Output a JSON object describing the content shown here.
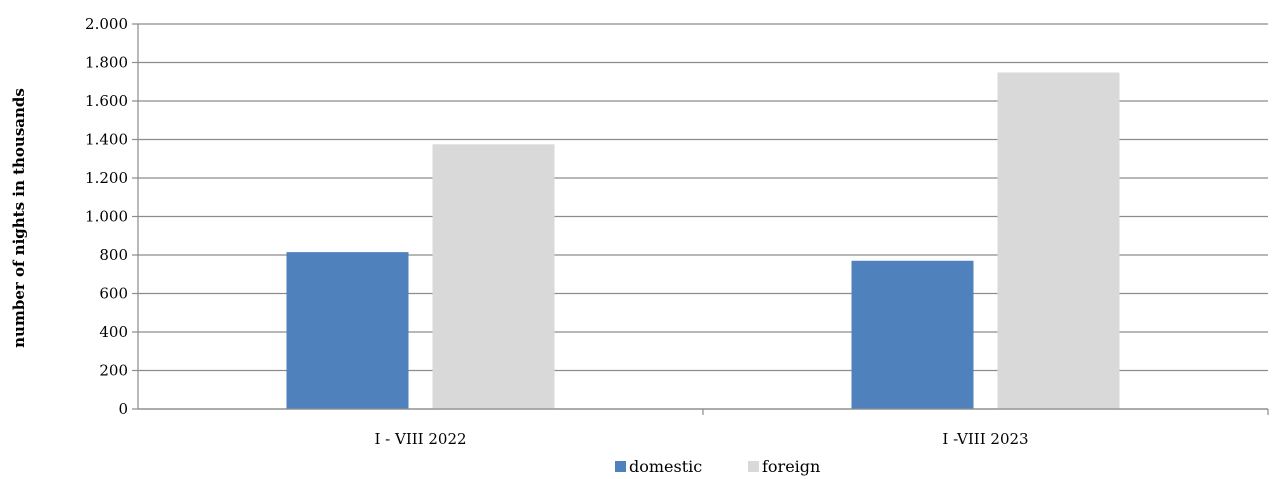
{
  "chart_data": {
    "type": "bar",
    "title": "",
    "xlabel": "",
    "ylabel": "number of nights in thousands",
    "categories": [
      "I - VIII 2022",
      "I -VIII 2023"
    ],
    "series": [
      {
        "name": "domestic",
        "values": [
          815,
          770
        ],
        "color": "#4f81bd"
      },
      {
        "name": "foreign",
        "values": [
          1375,
          1748
        ],
        "color": "#d9d9d9"
      }
    ],
    "ylim": [
      0,
      2000
    ],
    "yticks": [
      0,
      200,
      400,
      600,
      800,
      1000,
      1200,
      1400,
      1600,
      1800,
      2000
    ],
    "ytick_labels": [
      "0",
      "200",
      "400",
      "600",
      "800",
      "1.000",
      "1.200",
      "1.400",
      "1.600",
      "1.800",
      "2.000"
    ],
    "grid": true,
    "legend": "bottom"
  }
}
